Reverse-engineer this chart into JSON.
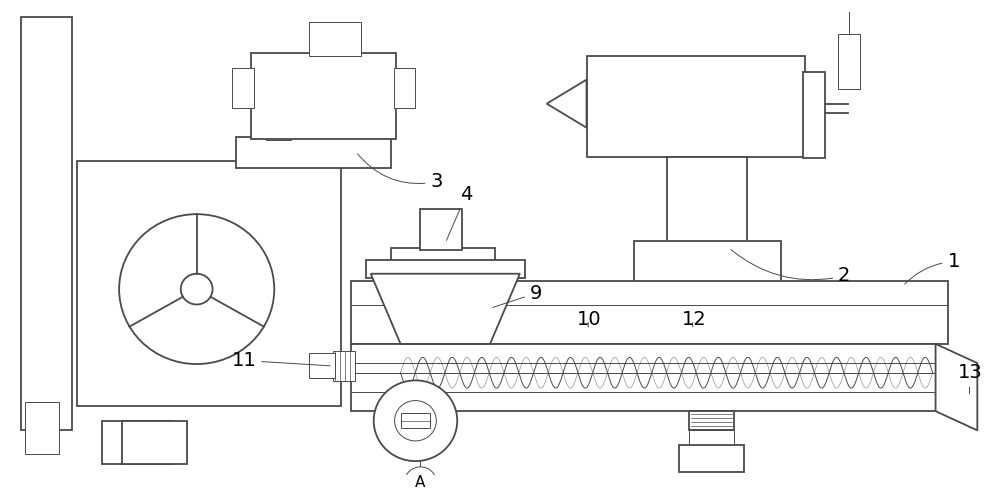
{
  "bg_color": "#ffffff",
  "line_color": "#4a4a4a",
  "lw": 1.3,
  "thin_lw": 0.7,
  "font_size": 12,
  "fig_w": 10.0,
  "fig_h": 4.91
}
